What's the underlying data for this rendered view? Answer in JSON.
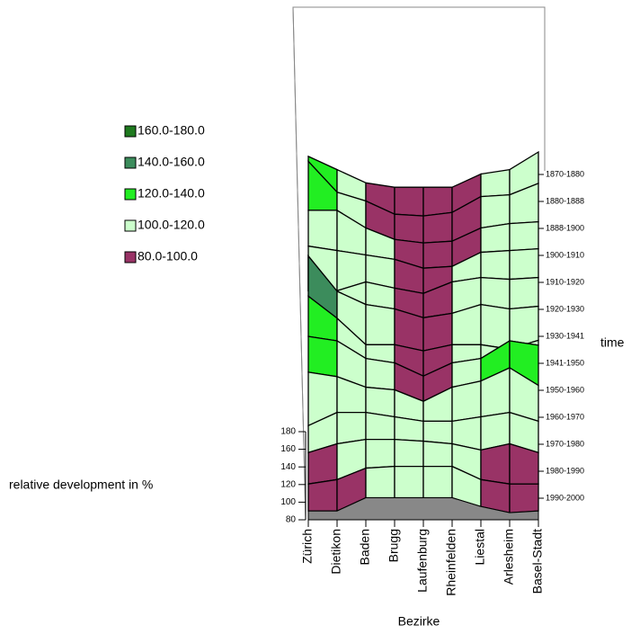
{
  "chart_data": {
    "type": "surface",
    "xlabel": "Bezirke",
    "ylabel": "time",
    "zlabel": "relative development in %",
    "x": [
      "Zürich",
      "Dietikon",
      "Baden",
      "Brugg",
      "Laufenburg",
      "Rheinfelden",
      "Liestal",
      "Arlesheim",
      "Basel-Stadt"
    ],
    "y": [
      "1870-1880",
      "1880-1888",
      "1888-1900",
      "1900-1910",
      "1910-1920",
      "1920-1930",
      "1930-1941",
      "1941-1950",
      "1950-1960",
      "1960-1970",
      "1970-1980",
      "1980-1990",
      "1990-2000"
    ],
    "z": [
      [
        125,
        110,
        95,
        90,
        90,
        90,
        105,
        110,
        130
      ],
      [
        150,
        115,
        105,
        90,
        88,
        92,
        110,
        112,
        125
      ],
      [
        125,
        125,
        105,
        92,
        88,
        90,
        105,
        110,
        112
      ],
      [
        115,
        110,
        105,
        100,
        90,
        92,
        108,
        110,
        112
      ],
      [
        95,
        95,
        105,
        98,
        92,
        105,
        110,
        108,
        110
      ],
      [
        165,
        125,
        110,
        105,
        95,
        100,
        110,
        105,
        108
      ],
      [
        150,
        125,
        95,
        95,
        88,
        95,
        95,
        90,
        100
      ],
      [
        135,
        130,
        110,
        105,
        90,
        105,
        110,
        130,
        125
      ],
      [
        125,
        120,
        108,
        105,
        92,
        108,
        115,
        130,
        110
      ],
      [
        95,
        110,
        110,
        105,
        100,
        100,
        105,
        110,
        100
      ],
      [
        95,
        105,
        110,
        110,
        108,
        105,
        98,
        105,
        95
      ],
      [
        90,
        95,
        108,
        110,
        110,
        110,
        95,
        90,
        90
      ],
      [
        90,
        90,
        105,
        105,
        105,
        105,
        95,
        88,
        90
      ]
    ],
    "zlim": [
      80,
      180
    ],
    "zticks": [
      80,
      100,
      120,
      140,
      160,
      180
    ],
    "legend": [
      {
        "label": "160.0-180.0",
        "min": 160,
        "max": 180,
        "color": "#1f7a1f"
      },
      {
        "label": "140.0-160.0",
        "min": 140,
        "max": 160,
        "color": "#3c8c5c"
      },
      {
        "label": "120.0-140.0",
        "min": 120,
        "max": 140,
        "color": "#22ee22"
      },
      {
        "label": "100.0-120.0",
        "min": 100,
        "max": 120,
        "color": "#ccffcc"
      },
      {
        "label": "80.0-100.0",
        "min": 80,
        "max": 100,
        "color": "#993366"
      }
    ],
    "floor_color": "#888888"
  }
}
